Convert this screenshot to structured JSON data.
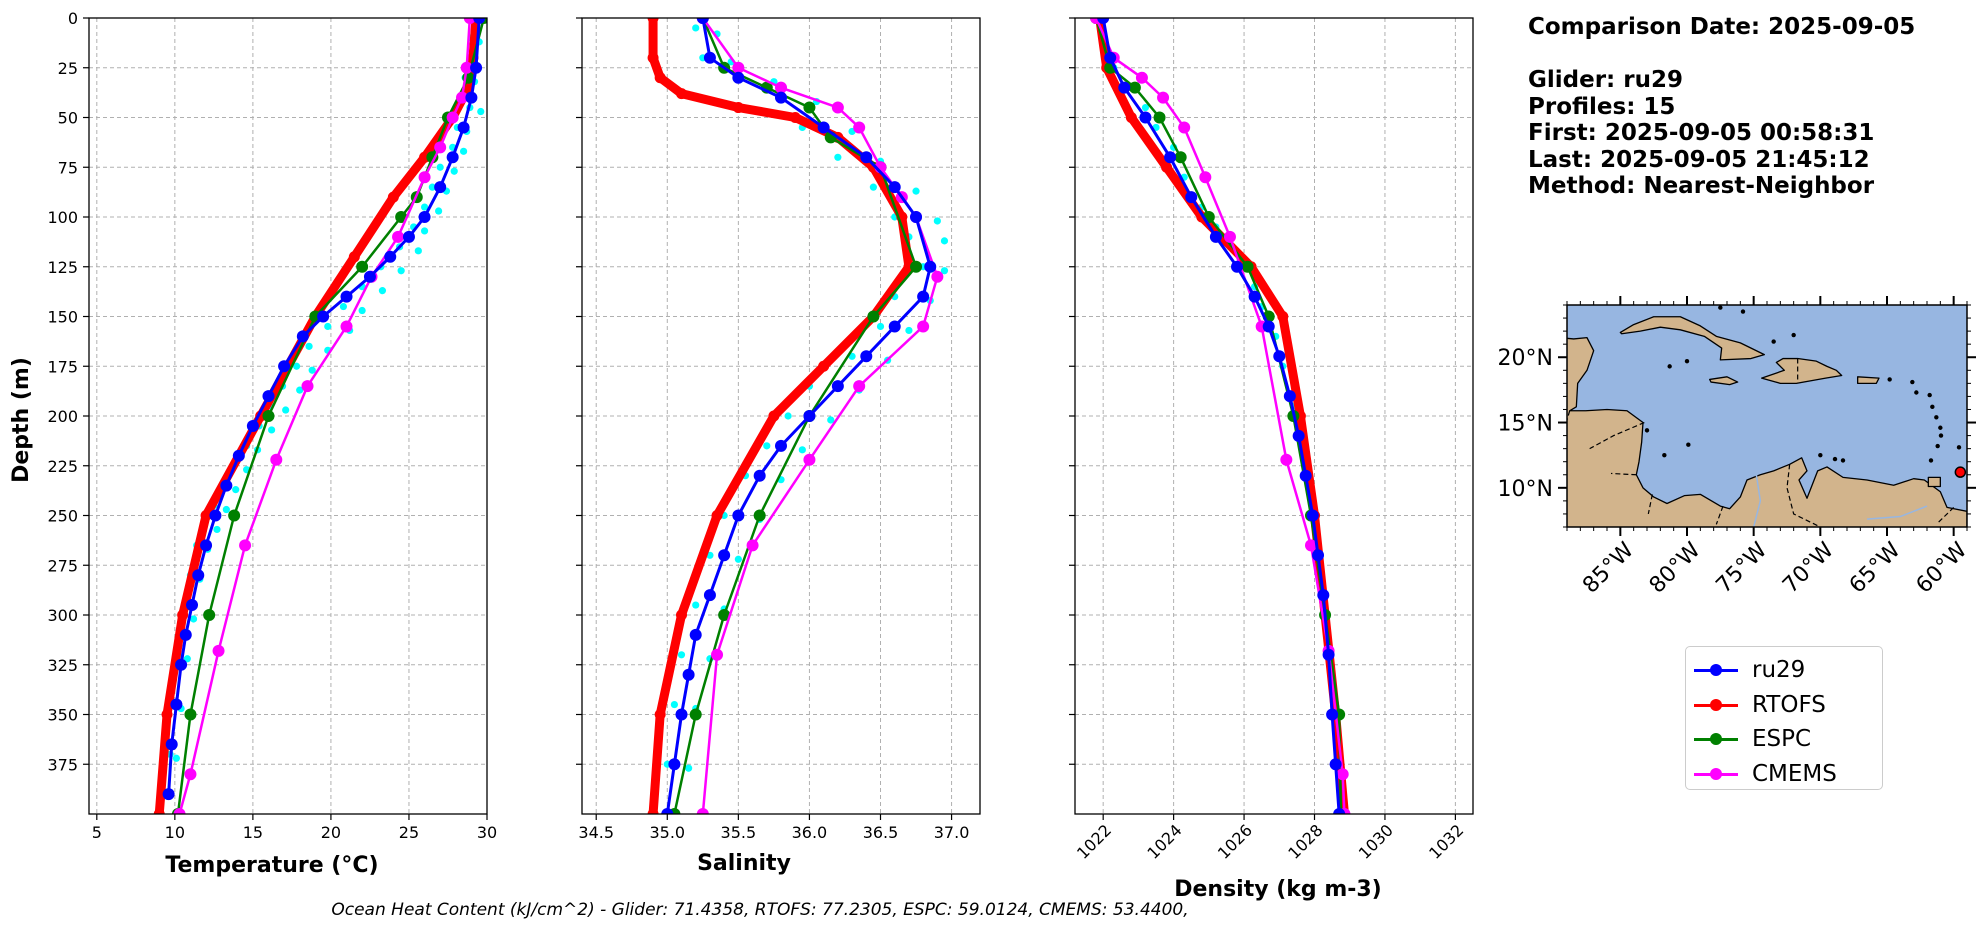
{
  "info": {
    "comparison_date": "Comparison Date: 2025-09-05",
    "glider": "Glider: ru29",
    "profiles": "Profiles: 15",
    "first": "First: 2025-09-05 00:58:31",
    "last": "Last: 2025-09-05 21:45:12",
    "method": "Method: Nearest-Neighbor"
  },
  "footer": "Ocean Heat Content (kJ/cm^2) - Glider: 71.4358,  RTOFS: 77.2305,  ESPC: 59.0124,  CMEMS: 53.4400,",
  "colors": {
    "ru29": "#0000ff",
    "rtofs": "#ff0000",
    "espc": "#008000",
    "cmems": "#ff00ff",
    "scatter": "#00ffff",
    "ocean": "#97b6e1",
    "land": "#d2b48c"
  },
  "legend": [
    {
      "name": "ru29",
      "color": "#0000ff"
    },
    {
      "name": "RTOFS",
      "color": "#ff0000"
    },
    {
      "name": "ESPC",
      "color": "#008000"
    },
    {
      "name": "CMEMS",
      "color": "#ff00ff"
    }
  ],
  "map": {
    "lon_ticks": [
      "85°W",
      "80°W",
      "75°W",
      "70°W",
      "65°W",
      "60°W"
    ],
    "lat_ticks": [
      "20°N",
      "15°N",
      "10°N"
    ],
    "lon_values": [
      -85,
      -80,
      -75,
      -70,
      -65,
      -60
    ],
    "lat_values": [
      20,
      15,
      10
    ],
    "lon_range": [
      -89,
      -59
    ],
    "lat_range": [
      7,
      24
    ],
    "marker": {
      "lon": -59.5,
      "lat": 11.2,
      "color": "#ff0000"
    }
  },
  "chart_data": [
    {
      "type": "line",
      "xlabel": "Temperature (°C)",
      "ylabel": "Depth (m)",
      "xlim": [
        4.5,
        30
      ],
      "ylim": [
        400,
        0
      ],
      "x_ticks": [
        5,
        10,
        15,
        20,
        25,
        30
      ],
      "y_ticks": [
        0,
        25,
        50,
        75,
        100,
        125,
        150,
        175,
        200,
        225,
        250,
        275,
        300,
        325,
        350,
        375
      ],
      "grid": true,
      "series": [
        {
          "name": "ru29",
          "color": "#0000ff",
          "x": [
            29.5,
            29.3,
            29.0,
            28.5,
            27.8,
            27.0,
            26.0,
            25.0,
            23.8,
            22.5,
            21.0,
            19.5,
            18.2,
            17.0,
            16.0,
            15.0,
            14.1,
            13.3,
            12.6,
            12.0,
            11.5,
            11.1,
            10.7,
            10.4,
            10.1,
            9.8,
            9.6
          ],
          "y": [
            0,
            25,
            40,
            55,
            70,
            85,
            100,
            110,
            120,
            130,
            140,
            150,
            160,
            175,
            190,
            205,
            220,
            235,
            250,
            265,
            280,
            295,
            310,
            325,
            345,
            365,
            390
          ]
        },
        {
          "name": "RTOFS",
          "color": "#ff0000",
          "x": [
            29.3,
            29.1,
            28.8,
            27.8,
            26.0,
            24.0,
            21.5,
            19.0,
            15.5,
            12.0,
            10.5,
            9.5,
            9.0
          ],
          "y": [
            0,
            20,
            35,
            50,
            70,
            90,
            120,
            150,
            200,
            250,
            300,
            350,
            400
          ]
        },
        {
          "name": "ESPC",
          "color": "#008000",
          "x": [
            29.8,
            28.8,
            27.5,
            26.5,
            25.5,
            24.5,
            22.0,
            19.0,
            16.0,
            13.8,
            12.2,
            11.0,
            10.2
          ],
          "y": [
            0,
            30,
            50,
            70,
            90,
            100,
            125,
            150,
            200,
            250,
            300,
            350,
            400
          ]
        },
        {
          "name": "CMEMS",
          "color": "#ff00ff",
          "x": [
            28.9,
            28.7,
            28.4,
            27.8,
            27.0,
            26.0,
            24.3,
            22.6,
            21.0,
            18.5,
            16.5,
            14.5,
            12.8,
            11.0,
            10.3
          ],
          "y": [
            0,
            25,
            40,
            50,
            65,
            80,
            110,
            130,
            155,
            185,
            222,
            265,
            318,
            380,
            400
          ]
        },
        {
          "name": "",
          "color": "#00ffff",
          "scatter": true,
          "x": [
            29.0,
            29.5,
            28.6,
            29.2,
            28.9,
            29.6,
            28.1,
            28.7,
            27.8,
            28.5,
            27.0,
            27.9,
            26.5,
            27.4,
            26.0,
            26.9,
            25.3,
            26.0,
            24.4,
            25.6,
            23.2,
            24.5,
            22.0,
            23.3,
            20.8,
            22.0,
            19.8,
            21.2,
            18.6,
            19.8,
            17.8,
            18.8,
            16.9,
            18.0,
            16.1,
            17.1,
            15.4,
            16.2,
            14.6,
            15.3,
            13.8,
            14.6,
            13.1,
            13.9,
            12.5,
            13.3,
            11.9,
            12.7,
            11.4,
            12.1,
            11.0,
            11.6,
            10.6,
            11.2,
            10.2,
            10.8,
            9.9,
            10.4,
            9.7,
            10.1
          ],
          "y": [
            10,
            12,
            30,
            32,
            45,
            47,
            55,
            57,
            65,
            67,
            75,
            77,
            85,
            87,
            95,
            97,
            105,
            107,
            115,
            117,
            125,
            127,
            135,
            137,
            145,
            147,
            155,
            157,
            165,
            167,
            175,
            177,
            185,
            187,
            195,
            197,
            205,
            207,
            215,
            217,
            225,
            227,
            235,
            237,
            245,
            247,
            255,
            257,
            265,
            267,
            280,
            282,
            300,
            302,
            320,
            322,
            345,
            347,
            370,
            372
          ]
        }
      ]
    },
    {
      "type": "line",
      "xlabel": "Salinity",
      "ylabel": "",
      "xlim": [
        34.4,
        37.2
      ],
      "ylim": [
        400,
        0
      ],
      "x_ticks": [
        34.5,
        35.0,
        35.5,
        36.0,
        36.5,
        37.0
      ],
      "y_ticks": [
        0,
        25,
        50,
        75,
        100,
        125,
        150,
        175,
        200,
        225,
        250,
        275,
        300,
        325,
        350,
        375
      ],
      "grid": true,
      "series": [
        {
          "name": "ru29",
          "color": "#0000ff",
          "x": [
            35.25,
            35.3,
            35.5,
            35.8,
            36.1,
            36.4,
            36.6,
            36.75,
            36.85,
            36.8,
            36.6,
            36.4,
            36.2,
            36.0,
            35.8,
            35.65,
            35.5,
            35.4,
            35.3,
            35.2,
            35.15,
            35.1,
            35.05,
            35.0
          ],
          "y": [
            0,
            20,
            30,
            40,
            55,
            70,
            85,
            100,
            125,
            140,
            155,
            170,
            185,
            200,
            215,
            230,
            250,
            270,
            290,
            310,
            330,
            350,
            375,
            400
          ]
        },
        {
          "name": "RTOFS",
          "color": "#ff0000",
          "x": [
            34.9,
            34.9,
            34.95,
            35.1,
            35.5,
            35.9,
            36.2,
            36.45,
            36.65,
            36.7,
            36.45,
            36.1,
            35.75,
            35.35,
            35.1,
            34.95,
            34.9
          ],
          "y": [
            0,
            20,
            30,
            38,
            45,
            50,
            60,
            75,
            100,
            125,
            150,
            175,
            200,
            250,
            300,
            350,
            400
          ]
        },
        {
          "name": "ESPC",
          "color": "#008000",
          "x": [
            35.25,
            35.4,
            35.7,
            36.0,
            36.15,
            36.5,
            36.75,
            36.45,
            36.0,
            35.65,
            35.4,
            35.2,
            35.05
          ],
          "y": [
            0,
            25,
            35,
            45,
            60,
            75,
            125,
            150,
            200,
            250,
            300,
            350,
            400
          ]
        },
        {
          "name": "CMEMS",
          "color": "#ff00ff",
          "x": [
            35.25,
            35.5,
            35.8,
            36.2,
            36.35,
            36.5,
            36.65,
            36.75,
            36.9,
            36.8,
            36.35,
            36.0,
            35.6,
            35.35,
            35.25
          ],
          "y": [
            0,
            25,
            35,
            45,
            55,
            75,
            90,
            100,
            130,
            155,
            185,
            222,
            265,
            320,
            400
          ]
        },
        {
          "name": "",
          "color": "#00ffff",
          "scatter": true,
          "x": [
            35.2,
            35.35,
            35.25,
            35.45,
            35.5,
            35.75,
            35.8,
            36.05,
            35.95,
            36.3,
            36.2,
            36.5,
            36.45,
            36.75,
            36.6,
            36.9,
            36.7,
            36.95,
            36.8,
            36.95,
            36.6,
            36.85,
            36.5,
            36.7,
            36.3,
            36.55,
            36.0,
            36.35,
            35.85,
            36.15,
            35.7,
            35.95,
            35.55,
            35.8,
            35.4,
            35.65,
            35.3,
            35.5,
            35.2,
            35.4,
            35.1,
            35.3,
            35.05,
            35.2,
            35.0,
            35.15
          ],
          "y": [
            5,
            8,
            20,
            22,
            30,
            32,
            40,
            42,
            55,
            57,
            70,
            72,
            85,
            87,
            100,
            102,
            110,
            112,
            125,
            127,
            140,
            142,
            155,
            157,
            170,
            172,
            185,
            187,
            200,
            202,
            215,
            217,
            230,
            232,
            250,
            252,
            270,
            272,
            295,
            297,
            320,
            322,
            345,
            347,
            375,
            377
          ]
        }
      ]
    },
    {
      "type": "line",
      "xlabel": "Density (kg m-3)",
      "ylabel": "",
      "xlim": [
        1021.2,
        1032.5
      ],
      "ylim": [
        400,
        0
      ],
      "x_ticks": [
        1022,
        1024,
        1026,
        1028,
        1030,
        1032
      ],
      "y_ticks": [
        0,
        25,
        50,
        75,
        100,
        125,
        150,
        175,
        200,
        225,
        250,
        275,
        300,
        325,
        350,
        375
      ],
      "grid": true,
      "series": [
        {
          "name": "ru29",
          "color": "#0000ff",
          "x": [
            1022.0,
            1022.2,
            1022.6,
            1023.2,
            1023.9,
            1024.5,
            1025.2,
            1025.8,
            1026.3,
            1026.7,
            1027.0,
            1027.3,
            1027.55,
            1027.75,
            1027.95,
            1028.1,
            1028.25,
            1028.4,
            1028.5,
            1028.6,
            1028.7
          ],
          "y": [
            0,
            20,
            35,
            50,
            70,
            90,
            110,
            125,
            140,
            155,
            170,
            190,
            210,
            230,
            250,
            270,
            290,
            320,
            350,
            375,
            400
          ]
        },
        {
          "name": "RTOFS",
          "color": "#ff0000",
          "x": [
            1021.9,
            1022.1,
            1022.8,
            1023.8,
            1024.8,
            1026.2,
            1027.1,
            1027.6,
            1028.0,
            1028.3,
            1028.6,
            1028.85
          ],
          "y": [
            0,
            25,
            50,
            75,
            100,
            125,
            150,
            200,
            250,
            300,
            350,
            400
          ]
        },
        {
          "name": "ESPC",
          "color": "#008000",
          "x": [
            1021.8,
            1022.2,
            1022.9,
            1023.6,
            1024.2,
            1025.0,
            1026.1,
            1026.7,
            1027.4,
            1027.9,
            1028.3,
            1028.7,
            1028.75
          ],
          "y": [
            0,
            25,
            35,
            50,
            70,
            100,
            125,
            150,
            200,
            250,
            300,
            350,
            400
          ]
        },
        {
          "name": "CMEMS",
          "color": "#ff00ff",
          "x": [
            1021.8,
            1022.3,
            1023.1,
            1023.7,
            1024.3,
            1024.9,
            1025.6,
            1026.5,
            1027.2,
            1027.9,
            1028.4,
            1028.8,
            1028.85
          ],
          "y": [
            0,
            20,
            30,
            40,
            55,
            80,
            110,
            155,
            222,
            265,
            318,
            380,
            400
          ]
        },
        {
          "name": "",
          "color": "#00ffff",
          "scatter": true,
          "x": [
            1022.0,
            1022.3,
            1022.8,
            1023.2,
            1023.5,
            1024.0,
            1024.3,
            1024.8,
            1025.2,
            1025.6,
            1025.9,
            1026.3,
            1026.5,
            1026.9,
            1027.1,
            1027.4
          ],
          "y": [
            10,
            25,
            35,
            45,
            55,
            65,
            80,
            95,
            105,
            115,
            125,
            135,
            145,
            160,
            175,
            195
          ]
        }
      ]
    }
  ]
}
